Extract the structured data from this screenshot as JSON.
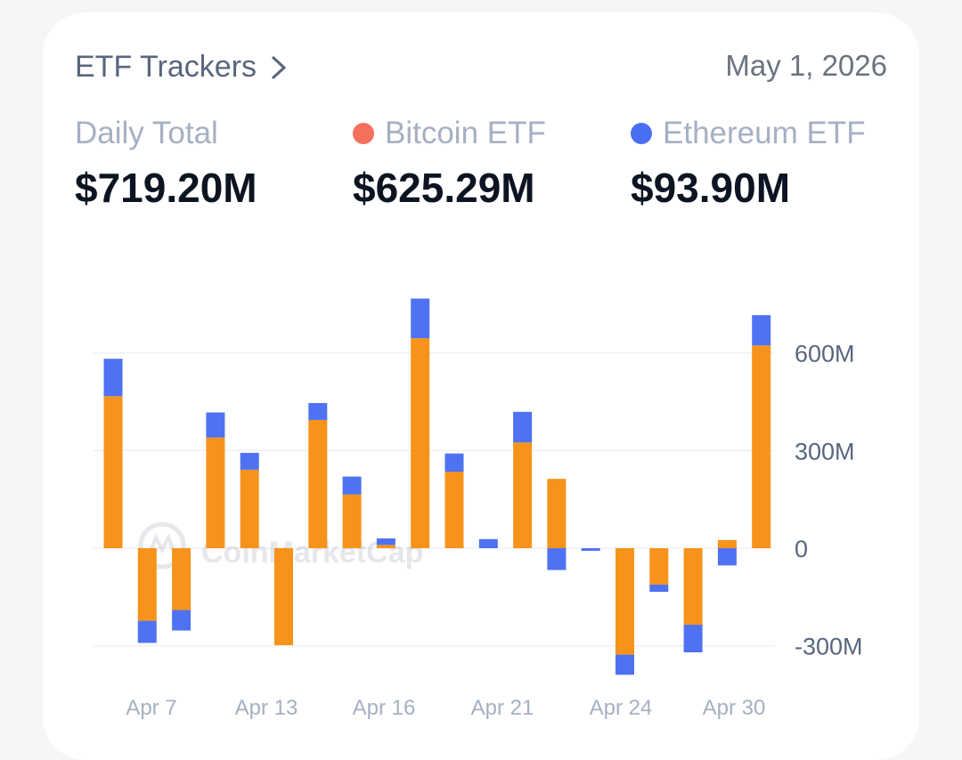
{
  "header": {
    "title": "ETF Trackers",
    "date": "May 1, 2026"
  },
  "stats": {
    "daily_total": {
      "label": "Daily Total",
      "value": "$719.20M"
    },
    "bitcoin": {
      "label": "Bitcoin ETF",
      "value": "$625.29M",
      "color": "#f6705e"
    },
    "ethereum": {
      "label": "Ethereum ETF",
      "value": "$93.90M",
      "color": "#4a6ff5"
    }
  },
  "watermark": {
    "text": "CoinMarketCap"
  },
  "colors": {
    "bitcoin_bar": "#f7931a",
    "ethereum_bar": "#4f72f2",
    "grid": "#eef0f3",
    "axis_text": "#58667e"
  },
  "chart_data": {
    "type": "bar",
    "stacked": true,
    "x_tick_labels": [
      "Apr 7",
      "Apr 13",
      "Apr 16",
      "Apr 21",
      "Apr 24",
      "Apr 30"
    ],
    "y_tick_labels": [
      "600M",
      "300M",
      "0",
      "-300M"
    ],
    "y_ticks": [
      600,
      300,
      0,
      -300
    ],
    "ylim": [
      -335,
      765
    ],
    "series": [
      {
        "name": "Bitcoin ETF",
        "values": [
          467,
          -223,
          -190,
          340,
          241,
          -298,
          394,
          165,
          10,
          645,
          235,
          0,
          325,
          213,
          0,
          -327,
          -112,
          -235,
          25,
          623
        ]
      },
      {
        "name": "Ethereum ETF",
        "values": [
          115,
          -68,
          -63,
          77,
          52,
          0,
          52,
          55,
          20,
          122,
          56,
          28,
          94,
          -67,
          -8,
          -62,
          -22,
          -85,
          -53,
          93
        ]
      }
    ],
    "grid": true
  }
}
